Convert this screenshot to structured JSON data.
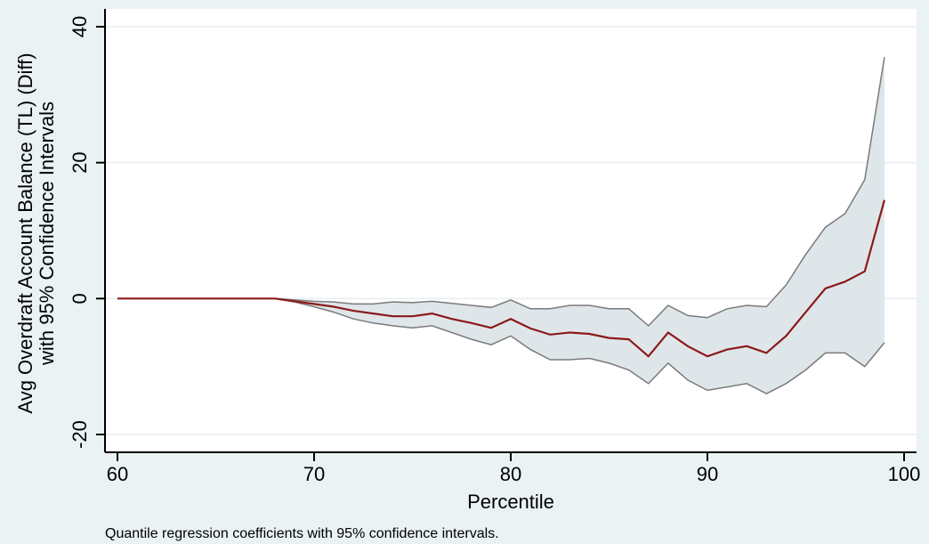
{
  "chart_data": {
    "type": "line",
    "title": "",
    "xlabel": "Percentile",
    "ylabel": [
      "Avg Overdraft Account Balance (TL) (Diff)",
      "with 95% Confidence Intervals"
    ],
    "note": "Quantile regression coefficients with 95% confidence intervals.",
    "xlim": [
      60,
      100
    ],
    "ylim": [
      -22,
      42
    ],
    "xticks": [
      60,
      70,
      80,
      90,
      100
    ],
    "yticks": [
      -20,
      0,
      20,
      40
    ],
    "grid": true,
    "colors": {
      "background": "#eaf2f3",
      "plot_area": "#ffffff",
      "band_fill": "#dfe6ea",
      "ci_line": "#7a7a7a",
      "estimate_line": "#8b1a1a",
      "grid": "#e6eef0"
    },
    "x": [
      60,
      61,
      62,
      63,
      64,
      65,
      66,
      67,
      68,
      69,
      70,
      71,
      72,
      73,
      74,
      75,
      76,
      77,
      78,
      79,
      80,
      81,
      82,
      83,
      84,
      85,
      86,
      87,
      88,
      89,
      90,
      91,
      92,
      93,
      94,
      95,
      96,
      97,
      98,
      99
    ],
    "series": [
      {
        "role": "upper",
        "values": [
          0,
          0,
          0,
          0,
          0,
          0,
          0,
          0,
          0,
          -0.2,
          -0.4,
          -0.5,
          -0.8,
          -0.8,
          -0.5,
          -0.6,
          -0.4,
          -0.7,
          -1.0,
          -1.3,
          -0.2,
          -1.5,
          -1.5,
          -1.0,
          -1.0,
          -1.5,
          -1.5,
          -4.0,
          -1.0,
          -2.5,
          -2.8,
          -1.5,
          -1.0,
          -1.2,
          2.0,
          6.5,
          10.5,
          12.5,
          17.5,
          35.5
        ]
      },
      {
        "role": "estimate",
        "values": [
          0,
          0,
          0,
          0,
          0,
          0,
          0,
          0,
          0,
          -0.4,
          -0.8,
          -1.2,
          -1.8,
          -2.2,
          -2.6,
          -2.6,
          -2.2,
          -3.0,
          -3.6,
          -4.3,
          -3.0,
          -4.4,
          -5.3,
          -5.0,
          -5.2,
          -5.8,
          -6.0,
          -8.5,
          -5.0,
          -7.0,
          -8.5,
          -7.5,
          -7.0,
          -8.0,
          -5.5,
          -2.0,
          1.5,
          2.5,
          4.0,
          14.5
        ]
      },
      {
        "role": "lower",
        "values": [
          0,
          0,
          0,
          0,
          0,
          0,
          0,
          0,
          0,
          -0.5,
          -1.2,
          -2.0,
          -3.0,
          -3.6,
          -4.0,
          -4.3,
          -4.0,
          -5.0,
          -6.0,
          -6.8,
          -5.5,
          -7.5,
          -9.0,
          -9.0,
          -8.8,
          -9.5,
          -10.5,
          -12.5,
          -9.5,
          -12.0,
          -13.5,
          -13.0,
          -12.5,
          -14.0,
          -12.5,
          -10.5,
          -8.0,
          -8.0,
          -10.0,
          -6.5
        ]
      }
    ]
  }
}
